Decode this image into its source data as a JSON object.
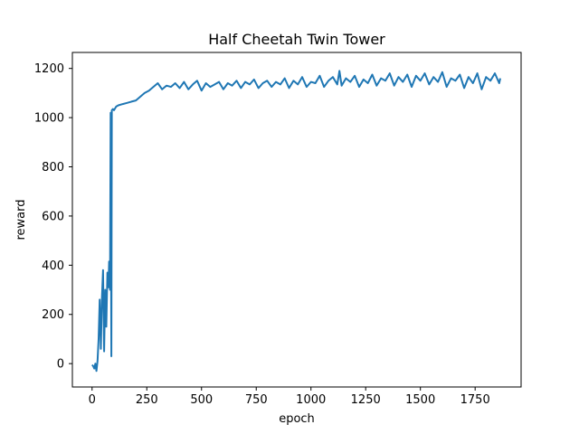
{
  "chart_data": {
    "type": "line",
    "title": "Half Cheetah Twin Tower",
    "xlabel": "epoch",
    "ylabel": "reward",
    "xlim": [
      -90,
      1960
    ],
    "ylim": [
      -95,
      1265
    ],
    "xticks": [
      0,
      250,
      500,
      750,
      1000,
      1250,
      1500,
      1750
    ],
    "yticks": [
      0,
      200,
      400,
      600,
      800,
      1000,
      1200
    ],
    "xtick_labels": [
      "0",
      "250",
      "500",
      "750",
      "1000",
      "1250",
      "1500",
      "1750"
    ],
    "ytick_labels": [
      "0",
      "200",
      "400",
      "600",
      "800",
      "1000",
      "1200"
    ],
    "grid": false,
    "series_color": "#1f77b4",
    "series": [
      {
        "x": [
          0,
          5,
          10,
          15,
          20,
          25,
          30,
          35,
          40,
          45,
          50,
          55,
          60,
          65,
          70,
          75,
          78,
          82,
          85,
          88,
          90,
          95,
          100,
          110,
          120,
          140,
          160,
          180,
          200,
          220,
          240,
          260,
          280,
          300,
          320,
          340,
          360,
          380,
          400,
          420,
          440,
          460,
          480,
          500,
          520,
          540,
          560,
          580,
          600,
          620,
          640,
          660,
          680,
          700,
          720,
          740,
          760,
          780,
          800,
          820,
          840,
          860,
          880,
          900,
          920,
          940,
          960,
          980,
          1000,
          1020,
          1040,
          1060,
          1080,
          1100,
          1120,
          1130,
          1140,
          1160,
          1180,
          1200,
          1220,
          1240,
          1260,
          1280,
          1300,
          1320,
          1340,
          1360,
          1380,
          1400,
          1420,
          1440,
          1460,
          1480,
          1500,
          1520,
          1540,
          1560,
          1580,
          1600,
          1620,
          1640,
          1660,
          1680,
          1700,
          1720,
          1740,
          1760,
          1780,
          1800,
          1820,
          1840,
          1860,
          1865
        ],
        "y": [
          -5,
          -10,
          -20,
          0,
          -30,
          10,
          100,
          260,
          60,
          270,
          380,
          50,
          300,
          150,
          370,
          310,
          415,
          300,
          1020,
          30,
          1030,
          1035,
          1030,
          1045,
          1050,
          1055,
          1060,
          1065,
          1070,
          1085,
          1100,
          1110,
          1125,
          1140,
          1115,
          1130,
          1125,
          1140,
          1120,
          1145,
          1115,
          1135,
          1150,
          1110,
          1140,
          1125,
          1135,
          1145,
          1115,
          1140,
          1130,
          1150,
          1120,
          1145,
          1135,
          1155,
          1120,
          1140,
          1150,
          1125,
          1145,
          1135,
          1160,
          1120,
          1150,
          1135,
          1165,
          1125,
          1145,
          1140,
          1170,
          1125,
          1150,
          1165,
          1135,
          1190,
          1130,
          1160,
          1145,
          1170,
          1125,
          1155,
          1140,
          1175,
          1130,
          1160,
          1150,
          1180,
          1130,
          1165,
          1145,
          1175,
          1125,
          1170,
          1150,
          1180,
          1135,
          1165,
          1145,
          1185,
          1125,
          1160,
          1150,
          1175,
          1120,
          1165,
          1140,
          1180,
          1115,
          1165,
          1150,
          1180,
          1140,
          1160
        ]
      }
    ]
  }
}
